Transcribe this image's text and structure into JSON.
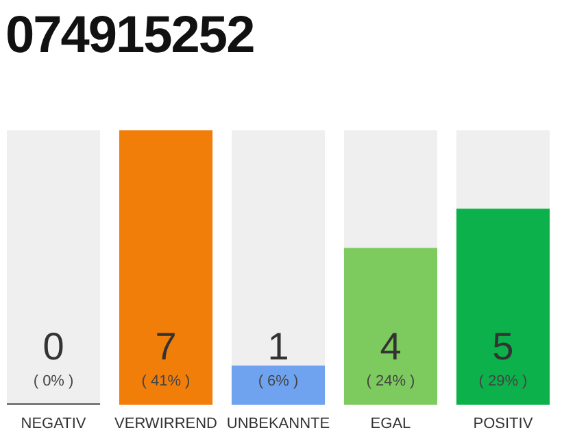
{
  "chart_data": {
    "type": "bar",
    "title": "074915252",
    "categories": [
      "NEGATIV",
      "VERWIRREND",
      "UNBEKANNTE",
      "EGAL",
      "POSITIV"
    ],
    "values": [
      0,
      7,
      1,
      4,
      5
    ],
    "colors": [
      "#555555",
      "#f27e0a",
      "#6fa3ef",
      "#7dcb5e",
      "#0db14b"
    ],
    "ylim": [
      0,
      7
    ],
    "tick_labels": "x",
    "data_labels": true,
    "annotations": [
      "( 0% )",
      "( 41% )",
      "( 6% )",
      "( 24% )",
      "( 29% )"
    ]
  }
}
